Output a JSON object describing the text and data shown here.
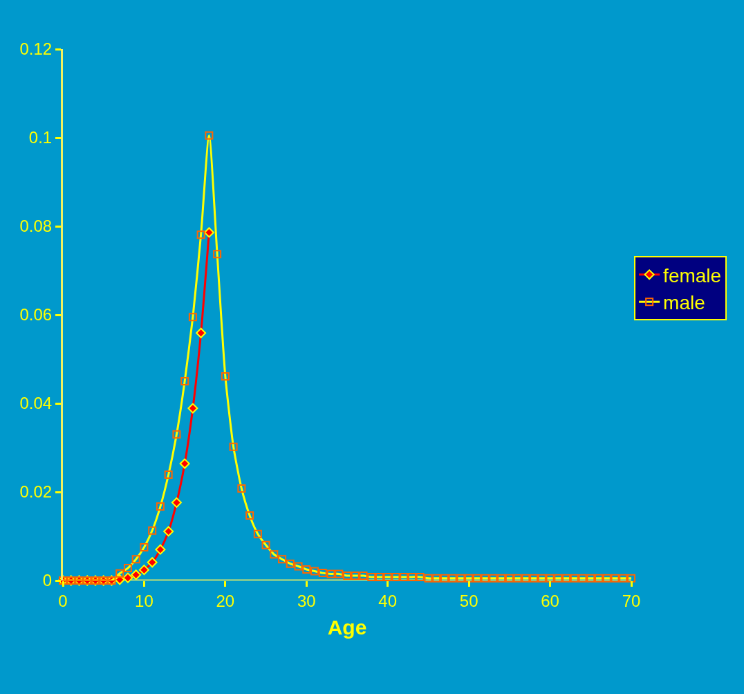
{
  "chart_data": {
    "type": "line",
    "xlabel": "Age",
    "x": [
      0,
      1,
      2,
      3,
      4,
      5,
      6,
      7,
      8,
      9,
      10,
      11,
      12,
      13,
      14,
      15,
      16,
      17,
      18,
      19,
      20,
      21,
      22,
      23,
      24,
      25,
      26,
      27,
      28,
      29,
      30,
      31,
      32,
      33,
      34,
      35,
      36,
      37,
      38,
      39,
      40,
      41,
      42,
      43,
      44,
      45,
      46,
      47,
      48,
      49,
      50,
      51,
      52,
      53,
      54,
      55,
      56,
      57,
      58,
      59,
      60,
      61,
      62,
      63,
      64,
      65,
      66,
      67,
      68,
      69,
      70
    ],
    "series": [
      {
        "name": "female",
        "color": "#ff0000",
        "marker": "diamond",
        "x": [
          0,
          1,
          2,
          3,
          4,
          5,
          6,
          7,
          8,
          9,
          10,
          11,
          12,
          13,
          14,
          15,
          16,
          17,
          18
        ],
        "values": [
          0,
          0,
          0,
          0,
          0,
          0,
          0,
          0.0002,
          0.0006,
          0.0013,
          0.0024,
          0.0041,
          0.007,
          0.0111,
          0.0176,
          0.0264,
          0.0389,
          0.0559,
          0.0786
        ]
      },
      {
        "name": "male",
        "color": "#ffff00",
        "marker": "square",
        "values": [
          0,
          0,
          0,
          0,
          0,
          0,
          0,
          0.0016,
          0.0028,
          0.0048,
          0.0075,
          0.0113,
          0.0167,
          0.0239,
          0.033,
          0.045,
          0.0595,
          0.0781,
          0.1005,
          0.0737,
          0.0461,
          0.0302,
          0.0208,
          0.0147,
          0.0105,
          0.008,
          0.0059,
          0.0048,
          0.0038,
          0.0032,
          0.0025,
          0.0021,
          0.0017,
          0.0015,
          0.0015,
          0.0011,
          0.0011,
          0.0011,
          0.0008,
          0.0008,
          0.0008,
          0.0008,
          0.0008,
          0.0008,
          0.0008,
          0.0005,
          0.0005,
          0.0005,
          0.0005,
          0.0005,
          0.0005,
          0.0005,
          0.0005,
          0.0005,
          0.0005,
          0.0005,
          0.0005,
          0.0005,
          0.0005,
          0.0005,
          0.0005,
          0.0005,
          0.0005,
          0.0005,
          0.0005,
          0.0005,
          0.0005,
          0.0005,
          0.0005,
          0.0005,
          0.0005
        ]
      }
    ],
    "xlim": [
      0,
      70
    ],
    "xticks": [
      0,
      10,
      20,
      30,
      40,
      50,
      60,
      70
    ],
    "ylim": [
      0,
      0.12
    ],
    "yticks": [
      0,
      0.02,
      0.04,
      0.06,
      0.08,
      0.1,
      0.12
    ],
    "grid": false,
    "legend": "right",
    "line_style": "solid"
  }
}
